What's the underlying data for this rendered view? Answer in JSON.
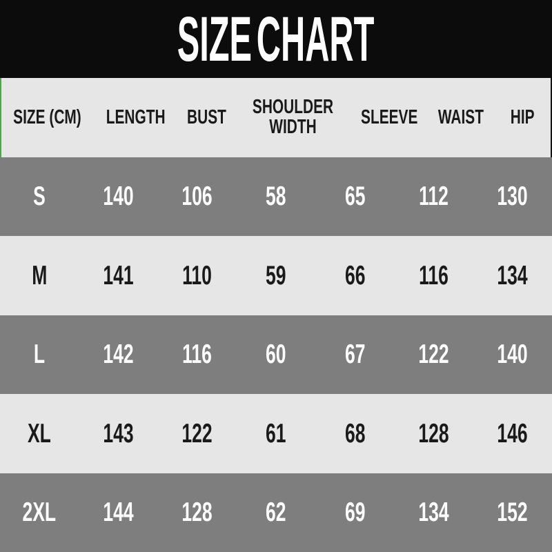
{
  "chart_data": {
    "type": "table",
    "title": "SIZE CHART",
    "columns": [
      "SIZE (CM)",
      "LENGTH",
      "BUST",
      "SHOULDER WIDTH",
      "SLEEVE",
      "WAIST",
      "HIP"
    ],
    "rows": [
      {
        "label": "S",
        "cells": [
          140,
          106,
          58,
          65,
          112,
          130
        ]
      },
      {
        "label": "M",
        "cells": [
          141,
          110,
          59,
          66,
          116,
          134
        ]
      },
      {
        "label": "L",
        "cells": [
          142,
          116,
          60,
          67,
          122,
          140
        ]
      },
      {
        "label": "XL",
        "cells": [
          143,
          122,
          61,
          68,
          128,
          146
        ]
      },
      {
        "label": "2XL",
        "cells": [
          144,
          128,
          62,
          69,
          134,
          152
        ]
      }
    ],
    "layout": {
      "row_shading": [
        "dark",
        "light",
        "dark",
        "light",
        "dark"
      ],
      "header_position": "top",
      "grid": "off"
    }
  },
  "colors": {
    "title_band_bg": "#0c0c0c",
    "title_text": "#ffffff",
    "header_row_bg": "#e6e6e6",
    "header_text": "#1a1a1a",
    "row_dark_bg": "#7e7e7e",
    "row_dark_text": "#fdfdfd",
    "row_light_bg": "#e6e6e6",
    "row_light_text": "#1a1a1a",
    "header_left_accent": "#55a055",
    "header_right_border": "#141414"
  }
}
